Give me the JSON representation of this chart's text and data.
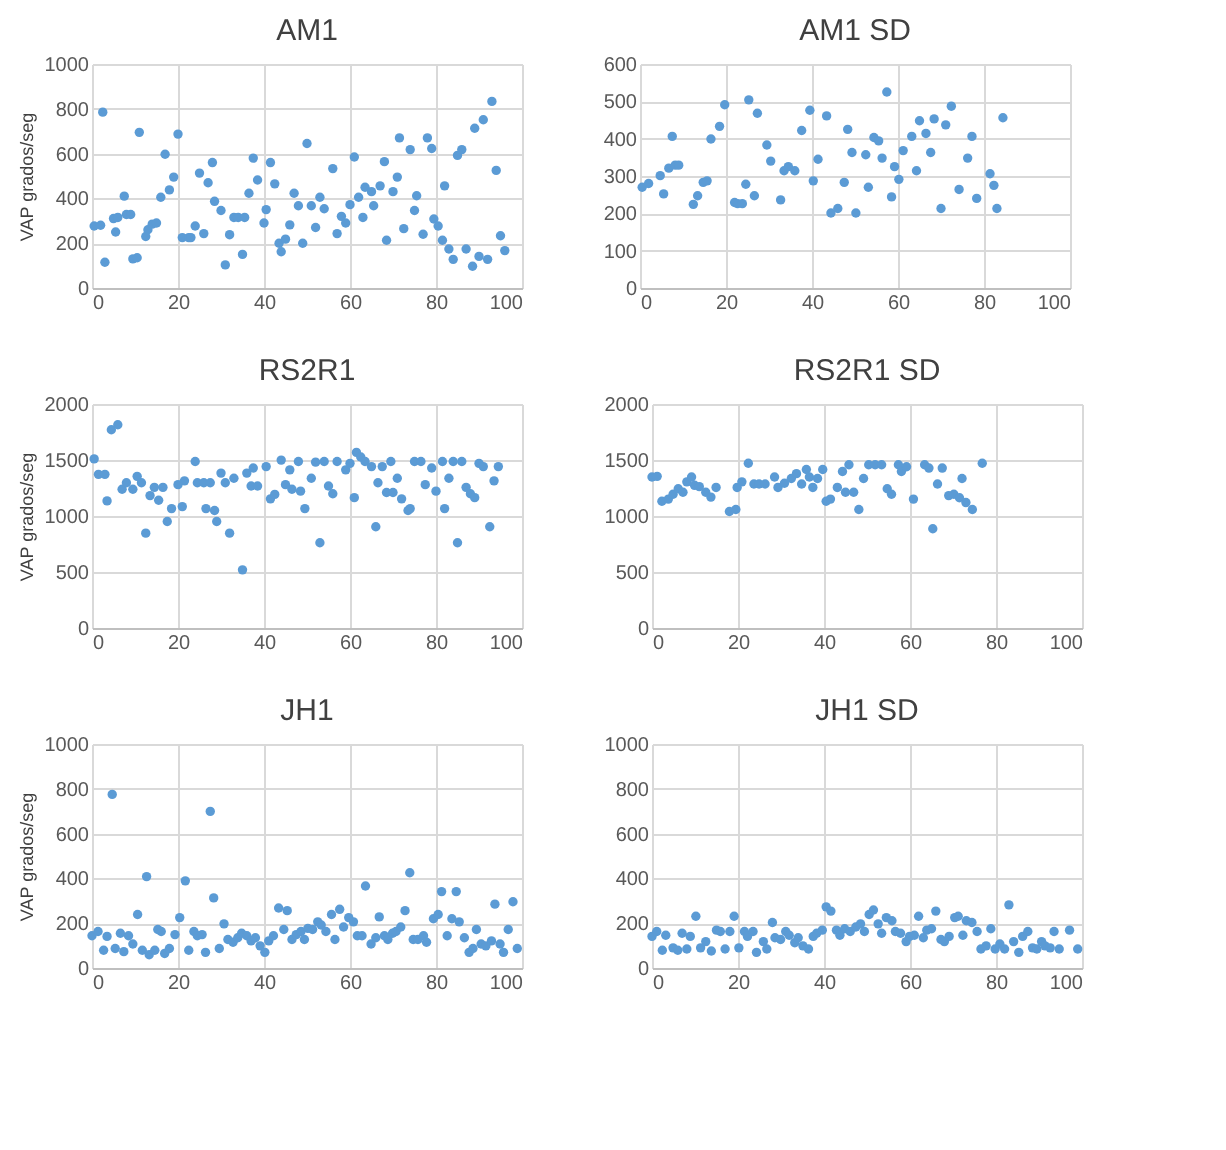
{
  "chart_data": [
    {
      "type": "scatter",
      "title": "AM1",
      "ylabel": "VAP grados/seg",
      "color": "#5b9bd5",
      "marker": "circle",
      "grid": true,
      "xlim": [
        0,
        100
      ],
      "xticks": [
        0,
        20,
        40,
        60,
        80,
        100
      ],
      "ylim": [
        0,
        1000
      ],
      "yticks": [
        0,
        200,
        400,
        600,
        800,
        1000
      ],
      "x": [
        0.5,
        2,
        2.5,
        3,
        5,
        5.5,
        6,
        7.5,
        8,
        9,
        9.5,
        10.5,
        11,
        12.5,
        13,
        14,
        15,
        16,
        17,
        18,
        19,
        20,
        21,
        22.5,
        23,
        24,
        25,
        26,
        27,
        28,
        28.5,
        30,
        31,
        32,
        33,
        34,
        35,
        35.5,
        36.5,
        37.5,
        38.5,
        40,
        40.5,
        41.5,
        42.5,
        43.5,
        44,
        45,
        46,
        47,
        48,
        49,
        50,
        51,
        52,
        53,
        54,
        56,
        57,
        58,
        59,
        60,
        61,
        62,
        63,
        63.5,
        65,
        65.5,
        67,
        68,
        68.5,
        70,
        71,
        71.5,
        72.5,
        74,
        75,
        75.5,
        77,
        78,
        79,
        79.5,
        80.5,
        81.5,
        82,
        83,
        84,
        85,
        86,
        87,
        88.5,
        89,
        90,
        91,
        92,
        93,
        94,
        95,
        96
      ],
      "values": [
        277,
        280,
        785,
        115,
        310,
        250,
        315,
        410,
        328,
        328,
        130,
        135,
        695,
        230,
        260,
        285,
        290,
        405,
        597,
        438,
        495,
        687,
        225,
        225,
        225,
        277,
        513,
        243,
        470,
        560,
        387,
        346,
        103,
        238,
        315,
        315,
        150,
        315,
        423,
        580,
        482,
        290,
        350,
        560,
        465,
        200,
        162,
        218,
        282,
        423,
        367,
        200,
        645,
        367,
        270,
        405,
        354,
        533,
        243,
        320,
        290,
        372,
        585,
        405,
        315,
        450,
        430,
        367,
        456,
        564,
        213,
        430,
        495,
        670,
        265,
        618,
        346,
        412,
        240,
        670,
        623,
        308,
        277,
        213,
        456,
        174,
        128,
        592,
        618,
        174,
        97,
        713,
        141,
        751,
        128,
        833,
        525,
        233,
        167
      ]
    },
    {
      "type": "scatter",
      "title": "AM1 SD",
      "color": "#5b9bd5",
      "marker": "circle",
      "grid": true,
      "xlim": [
        0,
        100
      ],
      "xticks": [
        0,
        20,
        40,
        60,
        80,
        100
      ],
      "ylim": [
        0,
        600
      ],
      "yticks": [
        0,
        100,
        200,
        300,
        400,
        500,
        600
      ],
      "x": [
        0.5,
        2,
        4.7,
        5.5,
        6.7,
        7.5,
        8.2,
        9,
        12.4,
        13.4,
        14.7,
        15.6,
        16.5,
        18.5,
        19.7,
        22,
        22.7,
        23.8,
        24.6,
        25.3,
        26.6,
        27.3,
        29.5,
        30.4,
        32.7,
        33.5,
        34.5,
        36,
        37.6,
        39.5,
        40.3,
        41.4,
        43.4,
        44.4,
        46,
        47.5,
        48.3,
        49.3,
        50.2,
        52.5,
        53.1,
        54.4,
        55.5,
        56.3,
        57.4,
        58.5,
        59.2,
        60.2,
        61.2,
        63.2,
        64.3,
        65,
        66.5,
        67.6,
        68.4,
        70,
        71.1,
        72.4,
        74.2,
        76.2,
        77.2,
        78.3,
        81.4,
        82.3,
        83,
        84.4
      ],
      "values": [
        270,
        280,
        301,
        252,
        321,
        406,
        329,
        329,
        224,
        247,
        283,
        287,
        399,
        433,
        491,
        229,
        226,
        226,
        278,
        504,
        247,
        468,
        383,
        340,
        236,
        314,
        325,
        314,
        422,
        476,
        287,
        345,
        461,
        201,
        213,
        283,
        425,
        363,
        201,
        357,
        270,
        403,
        394,
        348,
        525,
        244,
        325,
        291,
        368,
        406,
        314,
        448,
        414,
        363,
        453,
        213,
        437,
        487,
        264,
        348,
        406,
        240,
        306,
        275,
        213,
        456
      ]
    },
    {
      "type": "scatter",
      "title": "RS2R1",
      "ylabel": "VAP grados/seg",
      "color": "#5b9bd5",
      "marker": "circle",
      "grid": true,
      "xlim": [
        0,
        100
      ],
      "xticks": [
        0,
        20,
        40,
        60,
        80,
        100
      ],
      "ylim": [
        0,
        2000
      ],
      "yticks": [
        0,
        500,
        1000,
        1500,
        2000
      ],
      "x": [
        0.5,
        1.5,
        3,
        3.5,
        4.5,
        6,
        7,
        8,
        9.5,
        10.5,
        11.5,
        12.5,
        13.5,
        14.5,
        15.5,
        16.5,
        17.5,
        18.5,
        20,
        21,
        21.5,
        24,
        24.5,
        26,
        26.5,
        27.5,
        28.5,
        29,
        30,
        31,
        32,
        33,
        35,
        36,
        37,
        37.5,
        38.5,
        40.5,
        41.5,
        42.5,
        44,
        45,
        46,
        46.5,
        48,
        48.5,
        49.5,
        51,
        52,
        53,
        54,
        55,
        56,
        57,
        59,
        60,
        61,
        61.5,
        62.5,
        63.5,
        65,
        66,
        66.5,
        67.5,
        68.5,
        69.5,
        70,
        71,
        72,
        73.5,
        74,
        75,
        76.5,
        77.5,
        79,
        80,
        81.5,
        82,
        83,
        84,
        85,
        86,
        87,
        88,
        89,
        90,
        91,
        92.5,
        93.5,
        94.5
      ],
      "values": [
        1510,
        1372,
        1372,
        1135,
        1770,
        1815,
        1239,
        1297,
        1239,
        1354,
        1297,
        847,
        1182,
        1256,
        1141,
        1256,
        951,
        1066,
        1280,
        1084,
        1314,
        1487,
        1297,
        1297,
        1066,
        1297,
        1049,
        951,
        1383,
        1297,
        847,
        1337,
        519,
        1383,
        1268,
        1429,
        1268,
        1441,
        1153,
        1193,
        1499,
        1280,
        1412,
        1239,
        1487,
        1222,
        1066,
        1337,
        1481,
        761,
        1487,
        1268,
        1199,
        1487,
        1412,
        1470,
        1164,
        1568,
        1527,
        1487,
        1441,
        904,
        1297,
        1441,
        1210,
        1487,
        1210,
        1337,
        1153,
        1049,
        1066,
        1487,
        1487,
        1280,
        1429,
        1222,
        1487,
        1066,
        1337,
        1487,
        761,
        1487,
        1256,
        1199,
        1164,
        1470,
        1441,
        904,
        1314,
        1441
      ]
    },
    {
      "type": "scatter",
      "title": "RS2R1 SD",
      "color": "#5b9bd5",
      "marker": "circle",
      "grid": true,
      "xlim": [
        0,
        100
      ],
      "xticks": [
        0,
        20,
        40,
        60,
        80,
        100
      ],
      "ylim": [
        0,
        2000
      ],
      "yticks": [
        0,
        500,
        1000,
        1500,
        2000
      ],
      "x": [
        0,
        1.2,
        2.3,
        3.8,
        4.9,
        6.1,
        7.2,
        8.1,
        9.2,
        9.9,
        11,
        12.5,
        13.7,
        14.9,
        18,
        19.5,
        19.8,
        20.9,
        22.4,
        23.7,
        24.9,
        26.3,
        28.5,
        29.3,
        30.8,
        32.4,
        33.6,
        34.8,
        35.9,
        36.6,
        37.4,
        38.5,
        39.7,
        40.5,
        41.5,
        43.1,
        44.3,
        45,
        45.8,
        46.9,
        48.1,
        49.2,
        50.4,
        51.9,
        53.4,
        54.7,
        55.7,
        57.3,
        58,
        59.2,
        60.8,
        63.4,
        64.4,
        65.3,
        66.4,
        67.5,
        69,
        70.2,
        71.5,
        72.1,
        73,
        74.5,
        76.8
      ],
      "values": [
        1348,
        1354,
        1132,
        1151,
        1194,
        1243,
        1212,
        1305,
        1348,
        1274,
        1262,
        1212,
        1169,
        1255,
        1040,
        1058,
        1255,
        1305,
        1471,
        1286,
        1286,
        1286,
        1348,
        1255,
        1292,
        1335,
        1378,
        1286,
        1415,
        1348,
        1255,
        1335,
        1415,
        1132,
        1151,
        1255,
        1397,
        1212,
        1458,
        1212,
        1058,
        1335,
        1458,
        1458,
        1458,
        1243,
        1194,
        1458,
        1397,
        1440,
        1151,
        1458,
        1428,
        886,
        1286,
        1428,
        1182,
        1194,
        1163,
        1335,
        1120,
        1058,
        1471
      ]
    },
    {
      "type": "scatter",
      "title": "JH1",
      "ylabel": "VAP grados/seg",
      "color": "#5b9bd5",
      "marker": "circle",
      "grid": true,
      "xlim": [
        0,
        100
      ],
      "xticks": [
        0,
        20,
        40,
        60,
        80,
        100
      ],
      "ylim": [
        0,
        1000
      ],
      "yticks": [
        0,
        200,
        400,
        600,
        800,
        1000
      ],
      "x": [
        0,
        1.4,
        2.7,
        3.5,
        4.7,
        5.4,
        6.6,
        7.4,
        8.5,
        9.5,
        10.6,
        11.7,
        12.7,
        13.3,
        14.6,
        15.3,
        16.1,
        16.9,
        18,
        19.3,
        20.4,
        21.7,
        22.5,
        23.7,
        24.5,
        25.6,
        26.4,
        27.5,
        28.3,
        29.6,
        30.7,
        31.6,
        32.8,
        33.9,
        34.8,
        36,
        37,
        38,
        39.1,
        40.2,
        41.1,
        42.2,
        43.4,
        44.6,
        45.4,
        46.5,
        47.5,
        48.6,
        49.4,
        50.2,
        51.3,
        52.5,
        53.3,
        54.4,
        55.7,
        56.5,
        57.6,
        58.5,
        59.7,
        60.8,
        61.7,
        62.8,
        63.6,
        64.9,
        66,
        66.8,
        68,
        68.8,
        69.9,
        70.7,
        71.8,
        72.8,
        73.9,
        74.7,
        75.8,
        77.1,
        77.8,
        79.4,
        80.5,
        81.3,
        82.6,
        83.7,
        84.7,
        85.4,
        86.6,
        87.7,
        88.6,
        89.4,
        90.5,
        91.6,
        92.9,
        93.7,
        94.9,
        95.7,
        96.8,
        97.9,
        98.9
      ],
      "values": [
        144,
        163,
        79,
        141,
        775,
        87,
        155,
        73,
        144,
        107,
        239,
        79,
        408,
        59,
        79,
        172,
        163,
        65,
        87,
        149,
        225,
        389,
        79,
        163,
        144,
        149,
        70,
        699,
        313,
        87,
        197,
        127,
        115,
        135,
        155,
        144,
        121,
        135,
        99,
        70,
        121,
        144,
        268,
        172,
        256,
        127,
        149,
        163,
        127,
        177,
        172,
        206,
        192,
        163,
        239,
        127,
        262,
        183,
        225,
        206,
        144,
        144,
        366,
        107,
        135,
        228,
        144,
        127,
        155,
        163,
        183,
        256,
        425,
        127,
        127,
        144,
        115,
        220,
        239,
        341,
        144,
        220,
        341,
        206,
        135,
        70,
        87,
        172,
        107,
        99,
        121,
        285,
        107,
        70,
        172,
        296,
        87
      ]
    },
    {
      "type": "scatter",
      "title": "JH1 SD",
      "color": "#5b9bd5",
      "marker": "circle",
      "grid": true,
      "xlim": [
        0,
        100
      ],
      "xticks": [
        0,
        20,
        40,
        60,
        80,
        100
      ],
      "ylim": [
        0,
        1000
      ],
      "yticks": [
        0,
        200,
        400,
        600,
        800,
        1000
      ],
      "x": [
        0,
        1.1,
        2.4,
        3.2,
        4.9,
        6,
        7,
        8.1,
        8.9,
        10.2,
        11.3,
        12.5,
        13.8,
        15,
        15.9,
        17,
        18.1,
        19.1,
        20.2,
        21.5,
        22.2,
        23.5,
        24.3,
        25.9,
        26.7,
        28,
        28.6,
        29.9,
        31.1,
        31.9,
        33.2,
        34,
        35.1,
        36.4,
        37.5,
        38.3,
        39.6,
        40.5,
        41.6,
        42.9,
        43.7,
        44.8,
        46.1,
        47.4,
        48.5,
        49.4,
        50.5,
        51.5,
        52.6,
        53.4,
        54.5,
        55.8,
        56.6,
        57.8,
        59.1,
        59.9,
        61,
        62,
        63.1,
        63.9,
        65,
        66,
        67.2,
        68,
        69.1,
        70.4,
        71.2,
        72.3,
        73.1,
        74.4,
        75.6,
        76.5,
        77.7,
        78.8,
        79.8,
        80.9,
        82,
        83,
        84.1,
        85.3,
        86.2,
        87.4,
        88.5,
        89.5,
        90.6,
        91.4,
        92.6,
        93.5,
        94.7,
        97.1,
        99
      ],
      "values": [
        141,
        163,
        79,
        146,
        90,
        79,
        155,
        85,
        141,
        231,
        90,
        118,
        76,
        169,
        163,
        85,
        163,
        231,
        90,
        163,
        141,
        163,
        70,
        118,
        85,
        203,
        135,
        127,
        163,
        146,
        113,
        135,
        99,
        85,
        141,
        155,
        169,
        273,
        254,
        169,
        146,
        175,
        163,
        183,
        197,
        163,
        239,
        259,
        197,
        155,
        225,
        211,
        163,
        155,
        118,
        141,
        146,
        231,
        135,
        169,
        175,
        254,
        127,
        118,
        141,
        225,
        231,
        146,
        211,
        203,
        163,
        85,
        99,
        175,
        85,
        107,
        85,
        282,
        118,
        70,
        141,
        163,
        90,
        85,
        118,
        99,
        90,
        163,
        85,
        169,
        85
      ]
    }
  ]
}
